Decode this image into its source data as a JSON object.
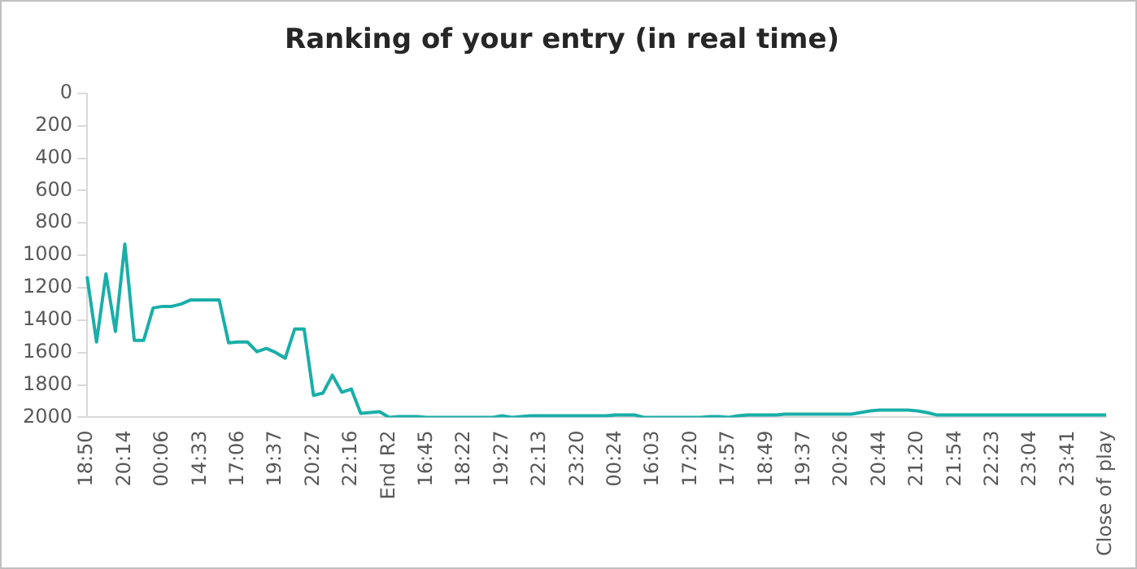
{
  "chart_data": {
    "type": "line",
    "title": "Ranking of your entry (in real time)",
    "categories": [
      "18:50",
      null,
      null,
      null,
      "20:14",
      null,
      null,
      null,
      "00:06",
      null,
      null,
      null,
      "14:33",
      null,
      null,
      null,
      "17:06",
      null,
      null,
      null,
      "19:37",
      null,
      null,
      null,
      "20:27",
      null,
      null,
      null,
      "22:16",
      null,
      null,
      null,
      "End R2",
      null,
      null,
      null,
      "16:45",
      null,
      null,
      null,
      "18:22",
      null,
      null,
      null,
      "19:27",
      null,
      null,
      null,
      "22:13",
      null,
      null,
      null,
      "23:20",
      null,
      null,
      null,
      "00:24",
      null,
      null,
      null,
      "16:03",
      null,
      null,
      null,
      "17:20",
      null,
      null,
      null,
      "17:57",
      null,
      null,
      null,
      "18:49",
      null,
      null,
      null,
      "19:37",
      null,
      null,
      null,
      "20:26",
      null,
      null,
      null,
      "20:44",
      null,
      null,
      null,
      "21:20",
      null,
      null,
      null,
      "21:54",
      null,
      null,
      null,
      "22:23",
      null,
      null,
      null,
      "23:04",
      null,
      null,
      null,
      "23:41",
      null,
      null,
      null,
      "Close of play"
    ],
    "values": [
      1130,
      1535,
      1115,
      1470,
      930,
      1525,
      1525,
      1325,
      1315,
      1315,
      1300,
      1275,
      1275,
      1275,
      1275,
      1540,
      1535,
      1535,
      1595,
      1575,
      1600,
      1635,
      1455,
      1455,
      1865,
      1850,
      1740,
      1845,
      1825,
      1975,
      1970,
      1965,
      2000,
      1995,
      1995,
      1995,
      2000,
      2000,
      2000,
      2000,
      2000,
      2000,
      2000,
      2000,
      1990,
      2000,
      1995,
      1990,
      1990,
      1990,
      1990,
      1990,
      1990,
      1990,
      1990,
      1990,
      1985,
      1985,
      1985,
      2000,
      2000,
      2000,
      2000,
      2000,
      2000,
      2000,
      1995,
      1995,
      2000,
      1990,
      1985,
      1985,
      1985,
      1985,
      1980,
      1980,
      1980,
      1980,
      1980,
      1980,
      1980,
      1980,
      1970,
      1960,
      1955,
      1955,
      1955,
      1955,
      1960,
      1970,
      1985,
      1985,
      1985,
      1985,
      1985,
      1985,
      1985,
      1985,
      1985,
      1985,
      1985,
      1985,
      1985,
      1985,
      1985,
      1985,
      1985,
      1985,
      1985
    ],
    "color": "#1aaea8",
    "ylim": [
      2000,
      0
    ],
    "yticks": [
      0,
      200,
      400,
      600,
      800,
      1000,
      1200,
      1400,
      1600,
      1800,
      2000
    ],
    "grid": false,
    "legend": false,
    "marker": "none",
    "line_style": "solid"
  }
}
